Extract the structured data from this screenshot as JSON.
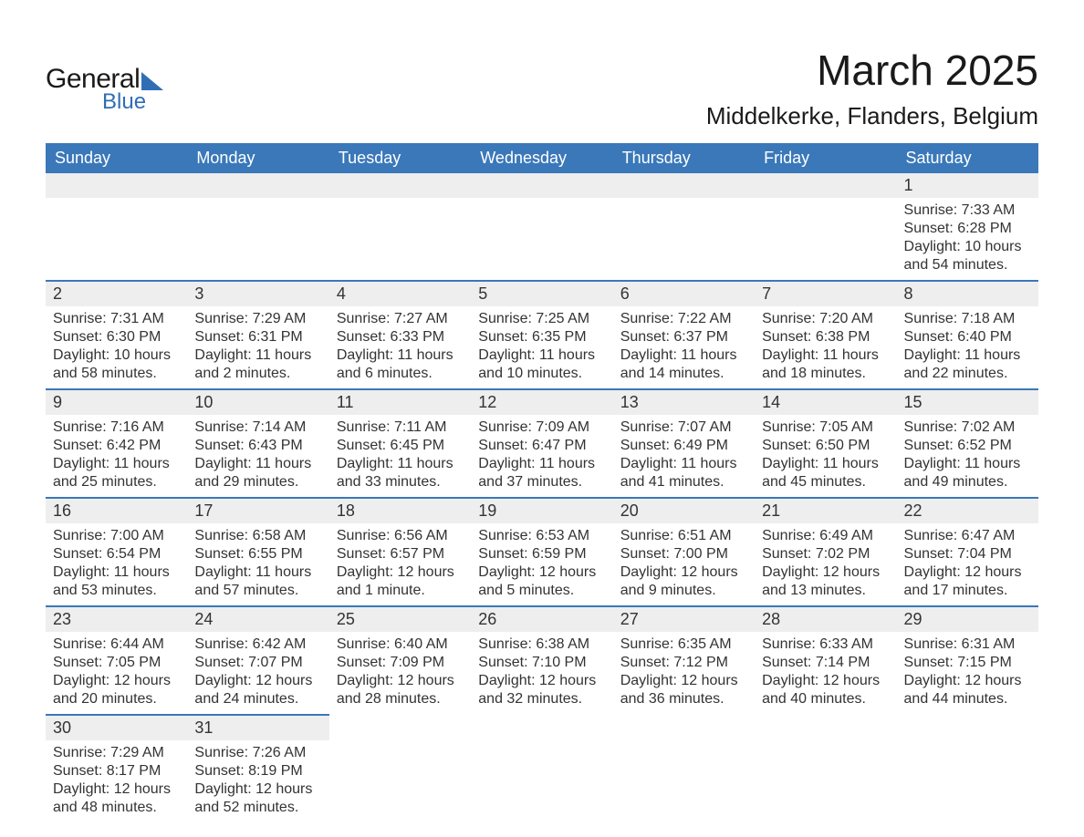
{
  "brand": {
    "word1": "General",
    "word2": "Blue",
    "text_color": "#1a1a1a",
    "accent_color": "#2f6eb5"
  },
  "title": "March 2025",
  "location": "Middelkerke, Flanders, Belgium",
  "styling": {
    "header_bg": "#3a78b9",
    "header_text": "#ffffff",
    "daynum_bg": "#eeeeee",
    "row_divider": "#3a78b9",
    "body_text": "#333333",
    "title_fontsize": 46,
    "subtitle_fontsize": 26,
    "dayhdr_fontsize": 18,
    "cell_fontsize": 16
  },
  "day_headers": [
    "Sunday",
    "Monday",
    "Tuesday",
    "Wednesday",
    "Thursday",
    "Friday",
    "Saturday"
  ],
  "weeks": [
    [
      {
        "n": null
      },
      {
        "n": null
      },
      {
        "n": null
      },
      {
        "n": null
      },
      {
        "n": null
      },
      {
        "n": null
      },
      {
        "n": 1,
        "sunrise": "7:33 AM",
        "sunset": "6:28 PM",
        "dl_h": 10,
        "dl_m": 54
      }
    ],
    [
      {
        "n": 2,
        "sunrise": "7:31 AM",
        "sunset": "6:30 PM",
        "dl_h": 10,
        "dl_m": 58
      },
      {
        "n": 3,
        "sunrise": "7:29 AM",
        "sunset": "6:31 PM",
        "dl_h": 11,
        "dl_m": 2
      },
      {
        "n": 4,
        "sunrise": "7:27 AM",
        "sunset": "6:33 PM",
        "dl_h": 11,
        "dl_m": 6
      },
      {
        "n": 5,
        "sunrise": "7:25 AM",
        "sunset": "6:35 PM",
        "dl_h": 11,
        "dl_m": 10
      },
      {
        "n": 6,
        "sunrise": "7:22 AM",
        "sunset": "6:37 PM",
        "dl_h": 11,
        "dl_m": 14
      },
      {
        "n": 7,
        "sunrise": "7:20 AM",
        "sunset": "6:38 PM",
        "dl_h": 11,
        "dl_m": 18
      },
      {
        "n": 8,
        "sunrise": "7:18 AM",
        "sunset": "6:40 PM",
        "dl_h": 11,
        "dl_m": 22
      }
    ],
    [
      {
        "n": 9,
        "sunrise": "7:16 AM",
        "sunset": "6:42 PM",
        "dl_h": 11,
        "dl_m": 25
      },
      {
        "n": 10,
        "sunrise": "7:14 AM",
        "sunset": "6:43 PM",
        "dl_h": 11,
        "dl_m": 29
      },
      {
        "n": 11,
        "sunrise": "7:11 AM",
        "sunset": "6:45 PM",
        "dl_h": 11,
        "dl_m": 33
      },
      {
        "n": 12,
        "sunrise": "7:09 AM",
        "sunset": "6:47 PM",
        "dl_h": 11,
        "dl_m": 37
      },
      {
        "n": 13,
        "sunrise": "7:07 AM",
        "sunset": "6:49 PM",
        "dl_h": 11,
        "dl_m": 41
      },
      {
        "n": 14,
        "sunrise": "7:05 AM",
        "sunset": "6:50 PM",
        "dl_h": 11,
        "dl_m": 45
      },
      {
        "n": 15,
        "sunrise": "7:02 AM",
        "sunset": "6:52 PM",
        "dl_h": 11,
        "dl_m": 49
      }
    ],
    [
      {
        "n": 16,
        "sunrise": "7:00 AM",
        "sunset": "6:54 PM",
        "dl_h": 11,
        "dl_m": 53
      },
      {
        "n": 17,
        "sunrise": "6:58 AM",
        "sunset": "6:55 PM",
        "dl_h": 11,
        "dl_m": 57
      },
      {
        "n": 18,
        "sunrise": "6:56 AM",
        "sunset": "6:57 PM",
        "dl_h": 12,
        "dl_m": 1
      },
      {
        "n": 19,
        "sunrise": "6:53 AM",
        "sunset": "6:59 PM",
        "dl_h": 12,
        "dl_m": 5
      },
      {
        "n": 20,
        "sunrise": "6:51 AM",
        "sunset": "7:00 PM",
        "dl_h": 12,
        "dl_m": 9
      },
      {
        "n": 21,
        "sunrise": "6:49 AM",
        "sunset": "7:02 PM",
        "dl_h": 12,
        "dl_m": 13
      },
      {
        "n": 22,
        "sunrise": "6:47 AM",
        "sunset": "7:04 PM",
        "dl_h": 12,
        "dl_m": 17
      }
    ],
    [
      {
        "n": 23,
        "sunrise": "6:44 AM",
        "sunset": "7:05 PM",
        "dl_h": 12,
        "dl_m": 20
      },
      {
        "n": 24,
        "sunrise": "6:42 AM",
        "sunset": "7:07 PM",
        "dl_h": 12,
        "dl_m": 24
      },
      {
        "n": 25,
        "sunrise": "6:40 AM",
        "sunset": "7:09 PM",
        "dl_h": 12,
        "dl_m": 28
      },
      {
        "n": 26,
        "sunrise": "6:38 AM",
        "sunset": "7:10 PM",
        "dl_h": 12,
        "dl_m": 32
      },
      {
        "n": 27,
        "sunrise": "6:35 AM",
        "sunset": "7:12 PM",
        "dl_h": 12,
        "dl_m": 36
      },
      {
        "n": 28,
        "sunrise": "6:33 AM",
        "sunset": "7:14 PM",
        "dl_h": 12,
        "dl_m": 40
      },
      {
        "n": 29,
        "sunrise": "6:31 AM",
        "sunset": "7:15 PM",
        "dl_h": 12,
        "dl_m": 44
      }
    ],
    [
      {
        "n": 30,
        "sunrise": "7:29 AM",
        "sunset": "8:17 PM",
        "dl_h": 12,
        "dl_m": 48
      },
      {
        "n": 31,
        "sunrise": "7:26 AM",
        "sunset": "8:19 PM",
        "dl_h": 12,
        "dl_m": 52
      },
      {
        "n": null
      },
      {
        "n": null
      },
      {
        "n": null
      },
      {
        "n": null
      },
      {
        "n": null
      }
    ]
  ],
  "labels": {
    "sunrise": "Sunrise:",
    "sunset": "Sunset:",
    "daylight": "Daylight:",
    "hours": "hours",
    "and": "and",
    "minute": "minute.",
    "minutes": "minutes."
  }
}
